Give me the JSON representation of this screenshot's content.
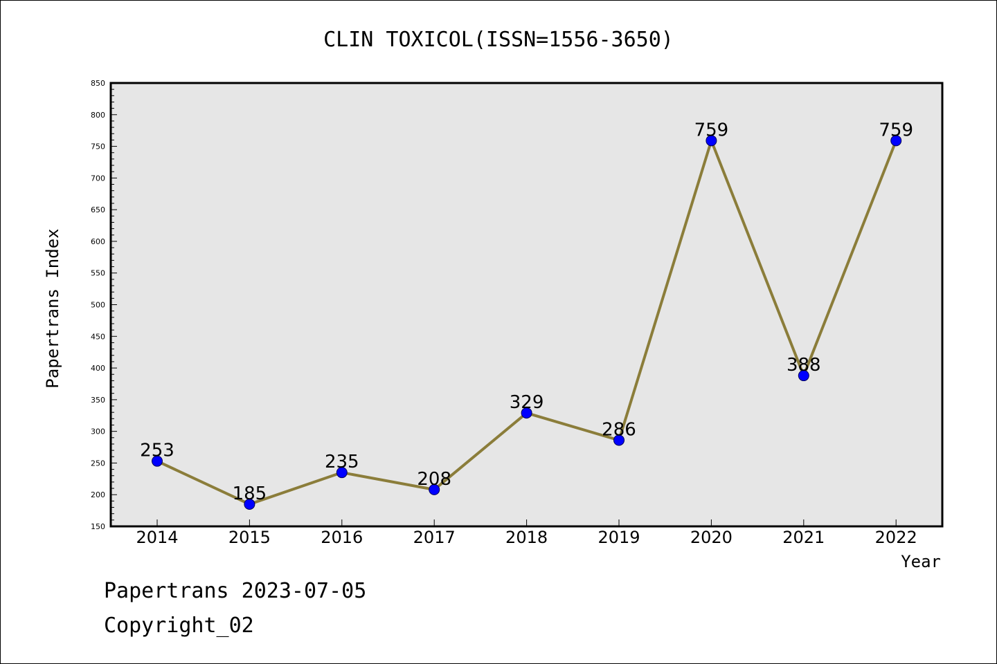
{
  "chart_data": {
    "type": "line",
    "title": "CLIN TOXICOL(ISSN=1556-3650)",
    "xlabel": "Year",
    "ylabel": "Papertrans Index",
    "x": [
      "2014",
      "2015",
      "2016",
      "2017",
      "2018",
      "2019",
      "2020",
      "2021",
      "2022"
    ],
    "series": [
      {
        "values": [
          253,
          185,
          235,
          208,
          329,
          286,
          759,
          388,
          759
        ]
      }
    ],
    "data_labels": [
      "253",
      "185",
      "235",
      "208",
      "329",
      "286",
      "759",
      "388",
      "759"
    ],
    "ylim": [
      150,
      850
    ],
    "yticks": [
      150,
      200,
      250,
      300,
      350,
      400,
      450,
      500,
      550,
      600,
      650,
      700,
      750,
      800,
      850
    ],
    "grid": false,
    "colors": {
      "line": "#8b7d3a",
      "marker": "#0000ff",
      "plot_bg": "#e6e6e6"
    }
  },
  "footer": {
    "stamp": "Papertrans 2023-07-05",
    "copyright": "Copyright_02"
  }
}
